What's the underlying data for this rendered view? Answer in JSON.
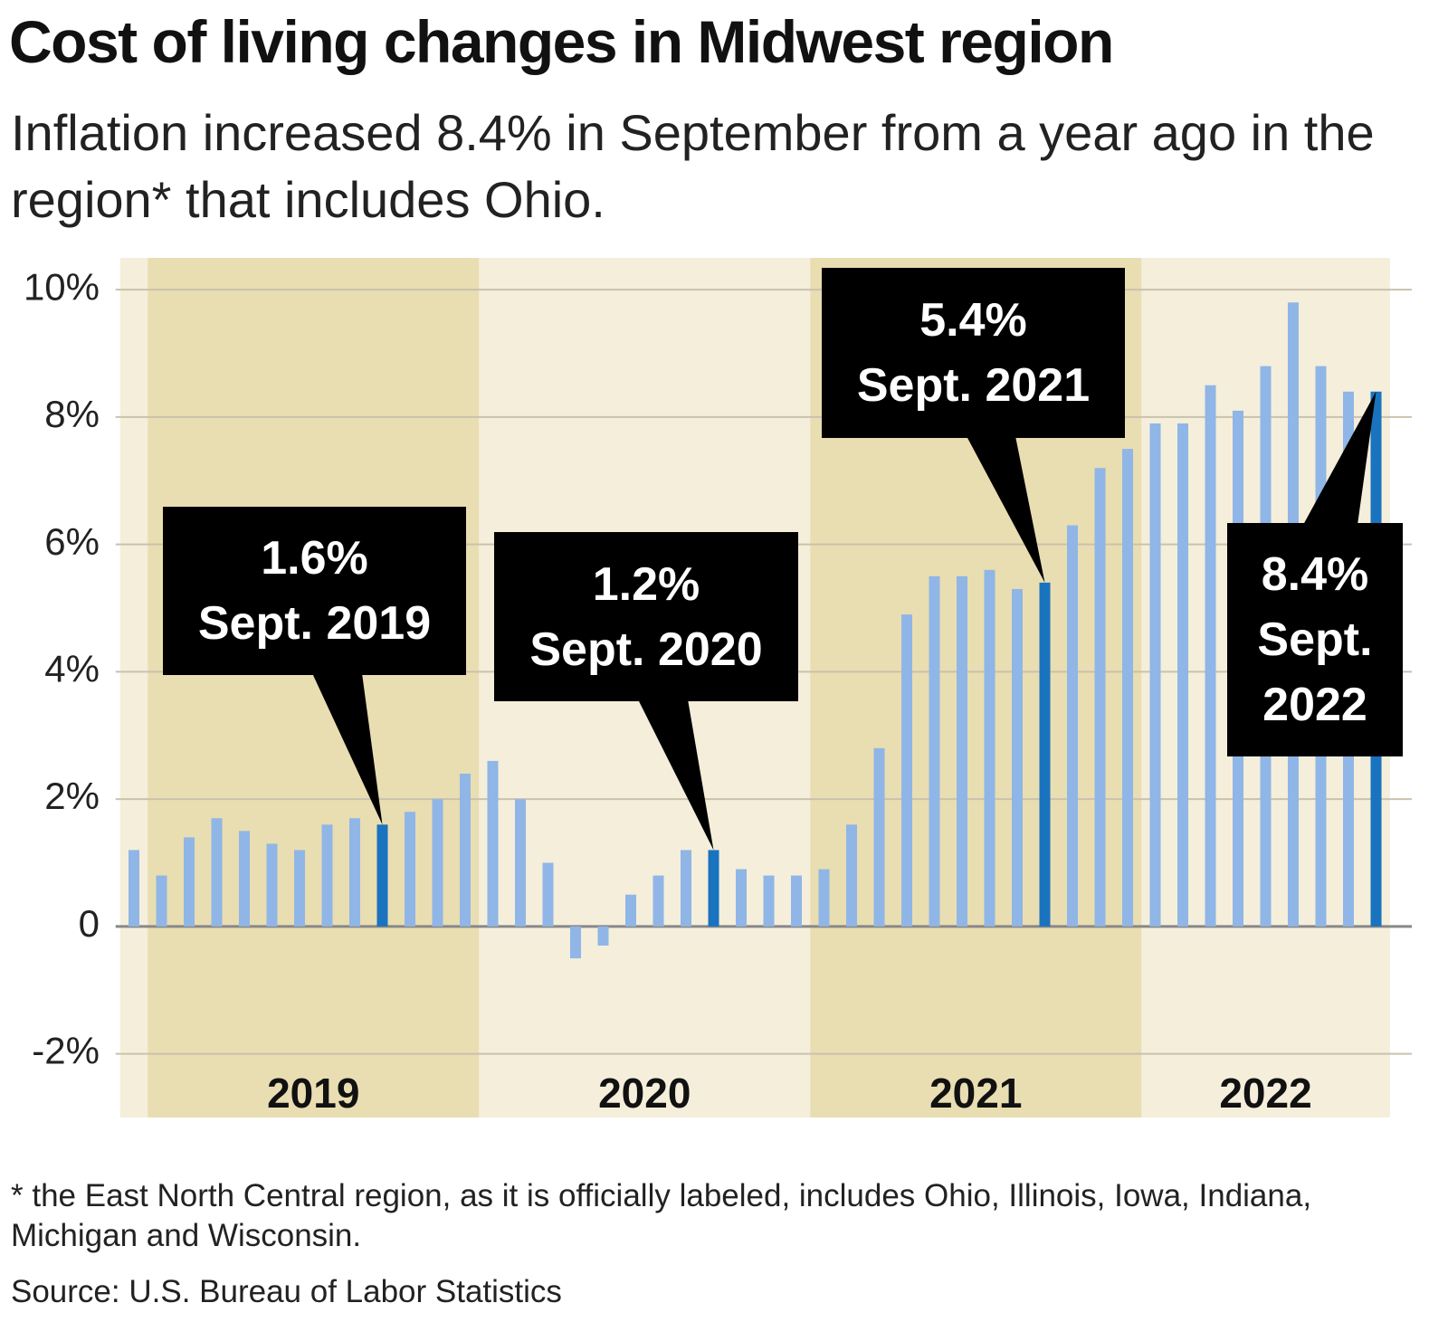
{
  "chart_data": {
    "type": "bar",
    "title": "Cost of living changes in Midwest region",
    "subtitle": "Inflation increased 8.4% in September from a year ago in the region* that includes Ohio.",
    "footnote": "* the East North Central region, as it is officially labeled, includes Ohio, Illinois, Iowa, Indiana, Michigan and Wisconsin.",
    "source": "Source: U.S. Bureau of Labor Statistics",
    "categories": [
      null,
      null,
      null,
      null,
      null,
      null,
      null,
      null,
      null,
      null,
      null,
      null,
      null,
      null,
      null,
      null,
      null,
      null,
      null,
      null,
      null,
      null,
      null,
      null,
      null,
      null,
      null,
      null,
      null,
      null,
      null,
      null,
      null,
      null,
      null,
      null,
      null,
      null,
      null,
      null,
      null,
      null,
      null,
      null,
      null,
      null
    ],
    "values": [
      1.2,
      0.8,
      1.4,
      1.7,
      1.5,
      1.3,
      1.2,
      1.6,
      1.7,
      1.6,
      1.8,
      2.0,
      2.4,
      2.6,
      2.0,
      1.0,
      -0.5,
      -0.3,
      0.5,
      0.8,
      1.2,
      1.2,
      0.9,
      0.8,
      0.8,
      0.9,
      1.6,
      2.8,
      4.9,
      5.5,
      5.5,
      5.6,
      5.3,
      5.4,
      6.3,
      7.2,
      7.5,
      7.9,
      7.9,
      8.5,
      8.1,
      8.8,
      9.8,
      8.8,
      8.4,
      8.4
    ],
    "color": "#8fb6e6",
    "highlight_color": "#1a73bf",
    "year_bands": [
      {
        "label": "2019",
        "start": 1,
        "end": 12,
        "color": "#e9ddb2"
      },
      {
        "label": "2020",
        "start": 13,
        "end": 24,
        "color": "#f4eedb"
      },
      {
        "label": "2021",
        "start": 25,
        "end": 36,
        "color": "#e9ddb2"
      },
      {
        "label": "2022",
        "start": 37,
        "end": 45,
        "color": "#f4eedb"
      }
    ],
    "annotations": [
      {
        "index": 9,
        "value_label": "1.6%",
        "date": "Sept. 2019"
      },
      {
        "index": 21,
        "value_label": "1.2%",
        "date": "Sept. 2020"
      },
      {
        "index": 33,
        "value_label": "5.4%",
        "date": "Sept. 2021"
      },
      {
        "index": 45,
        "value_label": "8.4%",
        "date": "Sept. 2022"
      }
    ],
    "ylim": [
      -3,
      10.5
    ],
    "yticks": [
      {
        "value": -2,
        "label": "-2%"
      },
      0,
      {
        "value": 2,
        "label": "2%"
      },
      {
        "value": 4,
        "label": "4%"
      },
      {
        "value": 6,
        "label": "6%"
      },
      {
        "value": 8,
        "label": "8%"
      },
      {
        "value": 10,
        "label": "10%"
      }
    ],
    "grid": true
  }
}
